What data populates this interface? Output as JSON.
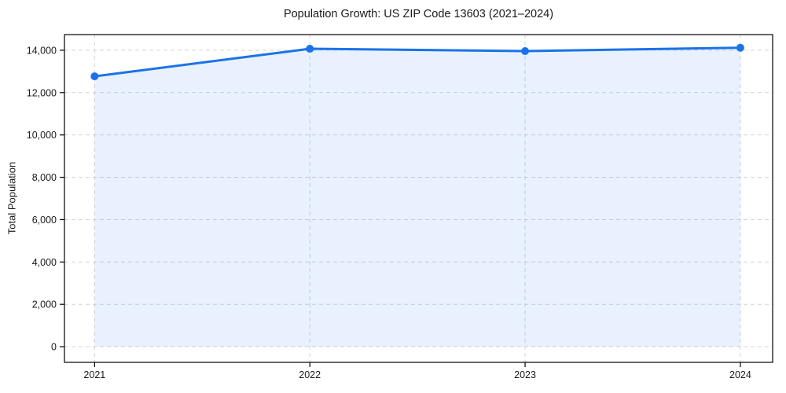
{
  "figure": {
    "background": "#ffffff"
  },
  "chart_data": {
    "type": "line",
    "title": "Population Growth: US ZIP Code 13603 (2021–2024)",
    "xlabel": "",
    "ylabel": "Total Population",
    "categories": [
      2021,
      2022,
      2023,
      2024
    ],
    "x_tick_labels": [
      "2021",
      "2022",
      "2023",
      "2024"
    ],
    "series": [
      {
        "name": "Total Population",
        "values": [
          12770,
          14070,
          13960,
          14120
        ],
        "color": "#1a73e8",
        "marker": "circle",
        "area_fill": true
      }
    ],
    "y_ticks": [
      0,
      2000,
      4000,
      6000,
      8000,
      10000,
      12000,
      14000
    ],
    "y_tick_labels": [
      "0",
      "2,000",
      "4,000",
      "6,000",
      "8,000",
      "10,000",
      "12,000",
      "14,000"
    ],
    "xlim": [
      2020.86,
      2024.15
    ],
    "ylim": [
      -740,
      14740
    ],
    "grid": true,
    "grid_style": "dashed",
    "grid_color": "#d4d4d4",
    "line_color": "#1a73e8",
    "fill_color": "rgba(26,115,232,0.10)",
    "spine_color": "#000000",
    "text_color": "#1a1a1a",
    "legend_position": "none"
  }
}
